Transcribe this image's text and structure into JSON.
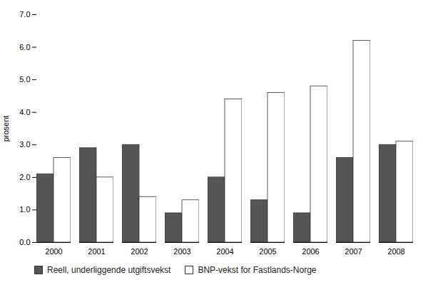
{
  "chart_data": {
    "type": "bar",
    "ylabel": "prosent",
    "categories": [
      "2000",
      "2001",
      "2002",
      "2003",
      "2004",
      "2005",
      "2006",
      "2007",
      "2008"
    ],
    "series": [
      {
        "name": "Reell, underliggende utgiftsvekst",
        "color": "#555555",
        "values": [
          2.1,
          2.9,
          3.0,
          0.9,
          2.0,
          1.3,
          0.9,
          2.6,
          3.0
        ]
      },
      {
        "name": "BNP-vekst for Fastlands-Norge",
        "color": "#ffffff",
        "values": [
          2.6,
          2.0,
          1.4,
          1.3,
          4.4,
          4.6,
          4.8,
          6.2,
          3.1
        ]
      }
    ],
    "ylim": [
      0,
      7
    ],
    "yticks": [
      0,
      1,
      2,
      3,
      4,
      5,
      6,
      7
    ],
    "grid": false,
    "legend": "bottom left"
  }
}
